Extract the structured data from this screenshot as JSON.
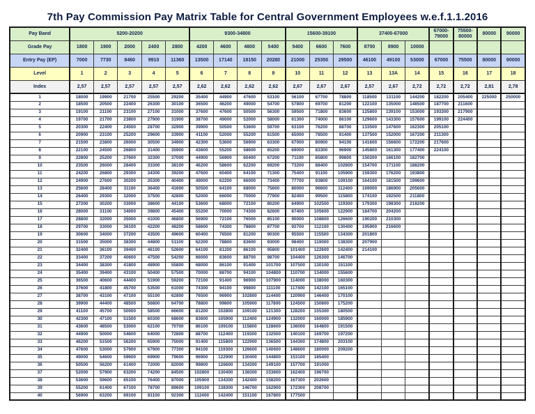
{
  "title": "7th Pay Commission Pay Matrix Table for Central Government Employees w.e.f.1.1.2016",
  "colors": {
    "band_row_bg": "#d9efca",
    "grade_row_bg": "#d9efca",
    "entry_row_bg": "#c7d6f4",
    "level_row_bg": "#ffffc2",
    "index_row_bg": "#f1f1f1",
    "text": "#1b2d5c",
    "border": "#1a1a1a"
  },
  "header": {
    "band_label": "Pay Band",
    "grade_label": "Grade Pay",
    "entry_label": "Entry Pay (EP)",
    "level_label": "Level",
    "index_label": "Index",
    "pay_bands": [
      {
        "label": "5200-20200",
        "span": 5
      },
      {
        "label": "9300-34800",
        "span": 4
      },
      {
        "label": "15600-39100",
        "span": 3
      },
      {
        "label": "37400-67000",
        "span": 3
      },
      {
        "label": "67000-79000",
        "span": 1
      },
      {
        "label": "75500-80000",
        "span": 1
      },
      {
        "label": "80000",
        "span": 1
      },
      {
        "label": "90000",
        "span": 1
      }
    ],
    "grade_pay": [
      "1800",
      "1900",
      "2000",
      "2400",
      "2800",
      "4200",
      "4600",
      "4800",
      "5400",
      "5400",
      "6600",
      "7600",
      "8700",
      "8900",
      "10000",
      "",
      "",
      "",
      ""
    ],
    "entry_pay": [
      "7000",
      "7730",
      "8460",
      "9910",
      "11360",
      "13500",
      "17140",
      "18150",
      "20280",
      "21000",
      "25350",
      "29500",
      "46100",
      "49100",
      "53000",
      "67000",
      "75500",
      "80000",
      "90000"
    ],
    "levels": [
      "1",
      "2",
      "3",
      "4",
      "5",
      "6",
      "7",
      "8",
      "9",
      "10",
      "11",
      "12",
      "13",
      "13A",
      "14",
      "15",
      "16",
      "17",
      "18"
    ],
    "index": [
      "2,57",
      "2,57",
      "2,57",
      "2,57",
      "2,57",
      "2,62",
      "2,62",
      "2,62",
      "2,62",
      "2,67",
      "2,67",
      "2,67",
      "2,57",
      "2,67",
      "2,72",
      "2,72",
      "2,72",
      "2,81",
      "2,78"
    ]
  },
  "chart_data": {
    "type": "table",
    "group_start_columns": [
      5,
      9,
      12,
      15,
      16,
      17,
      18
    ],
    "rows": [
      {
        "index": "1",
        "values": [
          "18000",
          "19900",
          "21700",
          "25500",
          "29200",
          "35400",
          "44900",
          "47600",
          "53100",
          "56100",
          "67700",
          "78800",
          "118500",
          "131100",
          "144200",
          "182200",
          "205400",
          "225000",
          "250000"
        ]
      },
      {
        "index": "2",
        "values": [
          "18500",
          "20500",
          "22400",
          "26300",
          "30100",
          "36500",
          "46200",
          "49000",
          "54700",
          "57800",
          "69700",
          "81200",
          "122100",
          "135000",
          "148500",
          "187700",
          "211600",
          "",
          ""
        ]
      },
      {
        "index": "3",
        "values": [
          "19100",
          "21100",
          "23100",
          "27100",
          "31000",
          "37600",
          "47600",
          "50500",
          "56300",
          "59500",
          "71800",
          "83600",
          "125800",
          "139100",
          "153000",
          "193300",
          "217900",
          "",
          ""
        ]
      },
      {
        "index": "4",
        "values": [
          "19700",
          "21700",
          "23800",
          "27900",
          "31900",
          "38700",
          "49000",
          "52000",
          "58000",
          "61300",
          "74000",
          "86100",
          "129600",
          "143300",
          "157600",
          "199100",
          "224400",
          "",
          ""
        ]
      },
      {
        "index": "5",
        "values": [
          "20300",
          "22400",
          "24500",
          "28700",
          "32900",
          "39900",
          "50500",
          "53600",
          "59700",
          "63100",
          "76200",
          "88700",
          "133500",
          "147600",
          "162300",
          "205100",
          "",
          "",
          ""
        ]
      },
      {
        "index": "6",
        "values": [
          "20900",
          "23100",
          "25200",
          "29600",
          "33900",
          "41100",
          "52000",
          "55200",
          "61500",
          "65000",
          "78500",
          "91400",
          "137500",
          "152000",
          "167200",
          "211300",
          "",
          "",
          ""
        ]
      },
      {
        "index": "7",
        "values": [
          "21500",
          "23800",
          "26000",
          "30500",
          "34900",
          "42300",
          "53600",
          "56900",
          "63300",
          "67000",
          "80900",
          "94100",
          "141600",
          "156600",
          "172200",
          "217600",
          "",
          "",
          ""
        ]
      },
      {
        "index": "8",
        "values": [
          "22100",
          "24500",
          "26800",
          "31400",
          "35900",
          "43600",
          "55200",
          "58600",
          "65200",
          "69000",
          "83300",
          "96900",
          "145800",
          "161300",
          "177400",
          "224100",
          "",
          "",
          ""
        ]
      },
      {
        "index": "9",
        "values": [
          "22800",
          "25200",
          "27600",
          "32300",
          "37000",
          "44900",
          "56900",
          "60400",
          "67200",
          "71100",
          "85800",
          "99800",
          "150200",
          "166100",
          "182700",
          "",
          "",
          "",
          ""
        ]
      },
      {
        "index": "10",
        "values": [
          "23500",
          "26000",
          "28400",
          "33300",
          "38100",
          "46200",
          "58600",
          "62200",
          "69200",
          "73200",
          "88400",
          "102800",
          "154700",
          "171100",
          "188200",
          "",
          "",
          "",
          ""
        ]
      },
      {
        "index": "11",
        "values": [
          "24200",
          "26800",
          "29300",
          "34300",
          "39200",
          "47600",
          "60400",
          "64100",
          "71300",
          "75400",
          "91100",
          "105900",
          "159300",
          "176200",
          "193800",
          "",
          "",
          "",
          ""
        ]
      },
      {
        "index": "12",
        "values": [
          "24900",
          "27600",
          "30200",
          "35300",
          "40400",
          "49000",
          "62200",
          "66000",
          "73400",
          "77700",
          "93800",
          "109100",
          "164100",
          "181500",
          "199600",
          "",
          "",
          "",
          ""
        ]
      },
      {
        "index": "13",
        "values": [
          "25600",
          "28400",
          "31100",
          "36400",
          "41600",
          "50500",
          "64100",
          "68000",
          "75600",
          "80000",
          "96600",
          "112400",
          "169000",
          "186900",
          "205600",
          "",
          "",
          "",
          ""
        ]
      },
      {
        "index": "14",
        "values": [
          "26400",
          "29300",
          "32000",
          "37500",
          "42800",
          "52000",
          "66000",
          "70000",
          "77900",
          "82400",
          "99500",
          "115800",
          "174100",
          "192500",
          "211800",
          "",
          "",
          "",
          ""
        ]
      },
      {
        "index": "15",
        "values": [
          "27200",
          "30200",
          "33000",
          "38600",
          "44100",
          "53600",
          "68000",
          "72100",
          "80200",
          "84900",
          "102500",
          "119300",
          "179300",
          "198300",
          "218200",
          "",
          "",
          "",
          ""
        ]
      },
      {
        "index": "16",
        "values": [
          "28000",
          "31100",
          "34000",
          "39800",
          "45400",
          "55200",
          "70000",
          "74300",
          "82600",
          "87400",
          "105600",
          "122900",
          "184700",
          "204200",
          "",
          "",
          "",
          "",
          ""
        ]
      },
      {
        "index": "17",
        "values": [
          "28800",
          "32000",
          "35000",
          "41000",
          "46800",
          "56900",
          "72100",
          "76500",
          "85100",
          "90000",
          "108800",
          "126600",
          "190200",
          "210300",
          "",
          "",
          "",
          "",
          ""
        ]
      },
      {
        "index": "18",
        "values": [
          "29700",
          "33000",
          "36100",
          "42200",
          "48200",
          "58600",
          "74300",
          "78800",
          "87700",
          "92700",
          "112100",
          "130400",
          "195900",
          "216600",
          "",
          "",
          "",
          "",
          ""
        ]
      },
      {
        "index": "19",
        "values": [
          "30600",
          "34000",
          "37200",
          "43500",
          "49600",
          "60400",
          "76500",
          "81200",
          "90300",
          "95500",
          "115500",
          "134300",
          "201800",
          "",
          "",
          "",
          "",
          "",
          ""
        ]
      },
      {
        "index": "20",
        "values": [
          "31500",
          "35000",
          "38300",
          "44800",
          "51100",
          "62200",
          "78800",
          "83600",
          "93000",
          "98400",
          "119000",
          "138300",
          "207900",
          "",
          "",
          "",
          "",
          "",
          ""
        ]
      },
      {
        "index": "21",
        "values": [
          "32400",
          "36100",
          "39400",
          "46100",
          "52600",
          "64100",
          "81200",
          "86100",
          "95800",
          "101400",
          "122600",
          "142400",
          "214100",
          "",
          "",
          "",
          "",
          "",
          ""
        ]
      },
      {
        "index": "22",
        "values": [
          "33400",
          "37200",
          "40600",
          "47500",
          "54200",
          "66000",
          "83600",
          "88700",
          "98700",
          "104400",
          "126300",
          "146700",
          "",
          "",
          "",
          "",
          "",
          "",
          ""
        ]
      },
      {
        "index": "23",
        "values": [
          "34400",
          "38300",
          "41800",
          "48900",
          "55800",
          "68000",
          "86100",
          "91400",
          "101700",
          "107500",
          "130100",
          "151100",
          "",
          "",
          "",
          "",
          "",
          "",
          ""
        ]
      },
      {
        "index": "24",
        "values": [
          "35400",
          "39400",
          "43100",
          "50400",
          "57500",
          "70000",
          "88700",
          "94100",
          "104800",
          "110700",
          "134000",
          "155600",
          "",
          "",
          "",
          "",
          "",
          "",
          ""
        ]
      },
      {
        "index": "25",
        "values": [
          "36500",
          "40600",
          "44400",
          "51900",
          "59200",
          "72100",
          "91400",
          "96900",
          "107900",
          "114000",
          "138000",
          "160300",
          "",
          "",
          "",
          "",
          "",
          "",
          ""
        ]
      },
      {
        "index": "26",
        "values": [
          "37600",
          "41800",
          "45700",
          "53500",
          "61000",
          "74300",
          "94100",
          "99800",
          "111100",
          "117400",
          "142100",
          "165100",
          "",
          "",
          "",
          "",
          "",
          "",
          ""
        ]
      },
      {
        "index": "27",
        "values": [
          "38700",
          "43100",
          "47100",
          "55100",
          "62800",
          "76500",
          "96900",
          "102800",
          "114400",
          "120900",
          "146400",
          "170100",
          "",
          "",
          "",
          "",
          "",
          "",
          ""
        ]
      },
      {
        "index": "28",
        "values": [
          "39900",
          "44400",
          "48500",
          "56800",
          "64700",
          "78800",
          "99800",
          "105900",
          "117800",
          "124500",
          "150800",
          "175200",
          "",
          "",
          "",
          "",
          "",
          "",
          ""
        ]
      },
      {
        "index": "29",
        "values": [
          "41100",
          "45700",
          "50000",
          "58500",
          "66600",
          "81200",
          "102800",
          "109100",
          "121300",
          "128200",
          "155300",
          "180500",
          "",
          "",
          "",
          "",
          "",
          "",
          ""
        ]
      },
      {
        "index": "30",
        "values": [
          "42300",
          "47100",
          "51500",
          "60300",
          "68600",
          "83600",
          "105900",
          "112400",
          "124900",
          "132000",
          "160000",
          "185900",
          "",
          "",
          "",
          "",
          "",
          "",
          ""
        ]
      },
      {
        "index": "31",
        "values": [
          "43600",
          "48500",
          "53000",
          "62100",
          "70700",
          "86100",
          "109100",
          "115800",
          "128600",
          "136000",
          "164800",
          "191500",
          "",
          "",
          "",
          "",
          "",
          "",
          ""
        ]
      },
      {
        "index": "32",
        "values": [
          "44900",
          "50000",
          "54600",
          "64000",
          "72800",
          "88700",
          "112400",
          "119300",
          "132500",
          "140100",
          "169700",
          "197200",
          "",
          "",
          "",
          "",
          "",
          "",
          ""
        ]
      },
      {
        "index": "33",
        "values": [
          "46200",
          "51500",
          "56200",
          "65900",
          "75000",
          "91400",
          "115800",
          "122900",
          "136500",
          "144300",
          "174800",
          "203100",
          "",
          "",
          "",
          "",
          "",
          "",
          ""
        ]
      },
      {
        "index": "34",
        "values": [
          "47600",
          "53000",
          "57900",
          "67900",
          "77300",
          "94100",
          "119300",
          "126600",
          "140600",
          "148600",
          "180000",
          "209200",
          "",
          "",
          "",
          "",
          "",
          "",
          ""
        ]
      },
      {
        "index": "35",
        "values": [
          "49000",
          "54600",
          "59600",
          "69900",
          "79600",
          "96900",
          "122900",
          "130400",
          "144800",
          "153100",
          "185400",
          "",
          "",
          "",
          "",
          "",
          "",
          "",
          ""
        ]
      },
      {
        "index": "36",
        "values": [
          "50500",
          "56200",
          "61400",
          "72000",
          "82000",
          "99800",
          "126600",
          "134300",
          "149100",
          "157700",
          "191000",
          "",
          "",
          "",
          "",
          "",
          "",
          "",
          ""
        ]
      },
      {
        "index": "37",
        "values": [
          "52000",
          "57900",
          "63200",
          "74200",
          "84500",
          "102800",
          "130400",
          "138300",
          "153600",
          "162400",
          "196700",
          "",
          "",
          "",
          "",
          "",
          "",
          "",
          ""
        ]
      },
      {
        "index": "38",
        "values": [
          "53600",
          "59600",
          "65100",
          "76400",
          "87000",
          "105900",
          "134300",
          "142400",
          "158200",
          "167300",
          "202600",
          "",
          "",
          "",
          "",
          "",
          "",
          "",
          ""
        ]
      },
      {
        "index": "39",
        "values": [
          "55200",
          "61400",
          "67100",
          "78700",
          "89600",
          "109100",
          "138300",
          "146700",
          "162900",
          "172300",
          "208700",
          "",
          "",
          "",
          "",
          "",
          "",
          "",
          ""
        ]
      },
      {
        "index": "40",
        "values": [
          "56900",
          "63200",
          "69100",
          "81100",
          "92300",
          "112400",
          "142400",
          "151100",
          "167800",
          "177500",
          "",
          "",
          "",
          "",
          "",
          "",
          "",
          "",
          ""
        ]
      }
    ]
  }
}
